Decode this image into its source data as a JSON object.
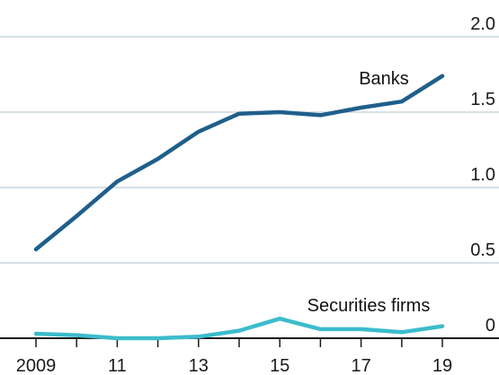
{
  "colors": {
    "banks": "#1f5f8b",
    "securities_firms": "#3cbccc",
    "gridline": "#c9d6df",
    "axis": "#1a1a1a"
  },
  "chart_data": {
    "type": "line",
    "title": "",
    "xlabel": "",
    "ylabel": "",
    "x": [
      2009,
      2010,
      2011,
      2012,
      2013,
      2014,
      2015,
      2016,
      2017,
      2018,
      2019
    ],
    "x_tick_values": [
      2009,
      2011,
      2013,
      2015,
      2017,
      2019
    ],
    "x_tick_labels": [
      "2009",
      "11",
      "13",
      "15",
      "17",
      "19"
    ],
    "xlim": [
      2008.95,
      2020.1
    ],
    "ylim": [
      -0.02,
      2.05
    ],
    "y_tick_values": [
      0,
      0.5,
      1.0,
      1.5,
      2.0
    ],
    "y_tick_labels": [
      "0",
      "0.5",
      "1.0",
      "1.5",
      "2.0"
    ],
    "y_axis_side": "right",
    "grid": true,
    "legend": "inline labels",
    "series": [
      {
        "name": "Banks",
        "color_key": "banks",
        "values": [
          0.59,
          0.81,
          1.04,
          1.19,
          1.37,
          1.49,
          1.5,
          1.48,
          1.53,
          1.57,
          1.74
        ]
      },
      {
        "name": "Securities firms",
        "color_key": "securities_firms",
        "values": [
          0.03,
          0.02,
          0.0,
          0.0,
          0.01,
          0.05,
          0.13,
          0.06,
          0.06,
          0.04,
          0.08
        ]
      }
    ]
  }
}
